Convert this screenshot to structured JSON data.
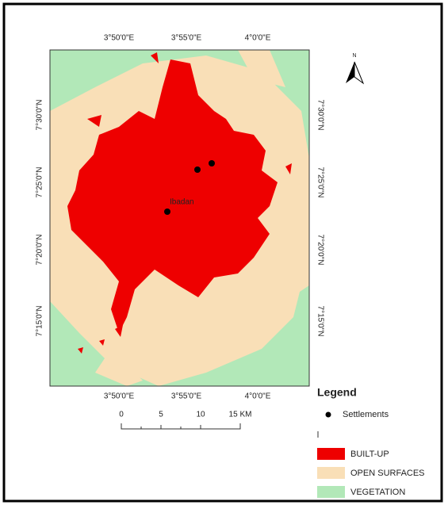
{
  "map": {
    "top_labels": [
      "3°50'0\"E",
      "3°55'0\"E",
      "4°0'0\"E"
    ],
    "bottom_labels": [
      "3°50'0\"E",
      "3°55'0\"E",
      "4°0'0\"E"
    ],
    "left_labels": [
      "7°30'0\"N",
      "7°25'0\"N",
      "7°20'0\"N",
      "7°15'0\"N"
    ],
    "right_labels": [
      "7°30'0\"N",
      "7°25'0\"N",
      "7°20'0\"N",
      "7°15'0\"N"
    ],
    "settlement_label": "Ibadan",
    "north": "N"
  },
  "scale_bar": {
    "labels": [
      "0",
      "5",
      "10",
      "15 KM"
    ]
  },
  "legend": {
    "title": "Legend",
    "settlements": "Settlements",
    "items": [
      "BUILT-UP",
      "OPEN SURFACES",
      "VEGETATION"
    ]
  }
}
